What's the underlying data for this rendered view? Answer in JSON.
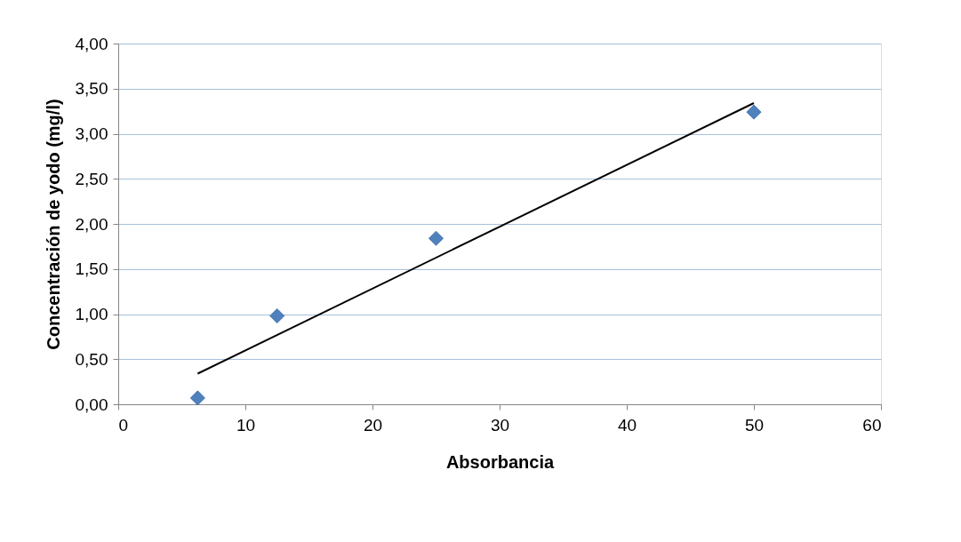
{
  "chart_data": {
    "type": "scatter",
    "xlabel": "Absorbancia",
    "ylabel": "Concentración de yodo (mg/l)",
    "series": [
      {
        "color": "#4f81bd",
        "marker": "diamond",
        "x": [
          6.25,
          12.5,
          25,
          50
        ],
        "values": [
          0.07,
          0.98,
          1.84,
          3.24
        ]
      },
      {
        "type": "line",
        "color": "#000000",
        "marker": "none",
        "line_style": "solid",
        "x": [
          6.25,
          50
        ],
        "values": [
          0.34,
          3.34
        ]
      }
    ],
    "xlim": [
      0,
      60
    ],
    "xticks": [
      0,
      10,
      20,
      30,
      40,
      50,
      60
    ],
    "ylim": [
      0,
      4
    ],
    "yticks": [
      {
        "value": 0,
        "label": "0,00"
      },
      {
        "value": 0.5,
        "label": "0,50"
      },
      {
        "value": 1,
        "label": "1,00"
      },
      {
        "value": 1.5,
        "label": "1,50"
      },
      {
        "value": 2,
        "label": "2,00"
      },
      {
        "value": 2.5,
        "label": "2,50"
      },
      {
        "value": 3,
        "label": "3,00"
      },
      {
        "value": 3.5,
        "label": "3,50"
      },
      {
        "value": 4,
        "label": "4,00"
      }
    ],
    "grid": "y"
  }
}
